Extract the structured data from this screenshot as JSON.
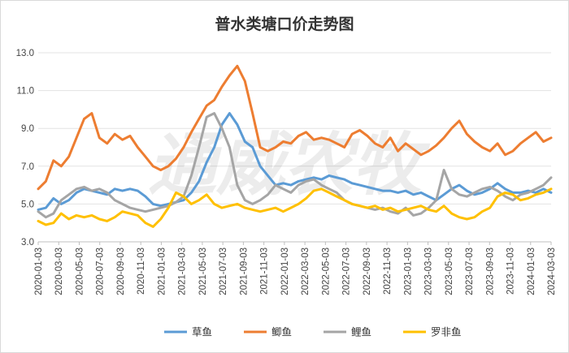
{
  "chart_data": {
    "type": "line",
    "title": "普水类塘口价走势图",
    "watermark": "通威农牧",
    "xlabel": "",
    "ylabel": "",
    "ylim": [
      3.0,
      13.0
    ],
    "yticks": [
      "3.0",
      "5.0",
      "7.0",
      "9.0",
      "11.0",
      "13.0"
    ],
    "x_tick_labels": [
      "2020-01-03",
      "2020-03-03",
      "2020-05-03",
      "2020-07-03",
      "2020-09-03",
      "2020-11-03",
      "2021-01-03",
      "2021-03-03",
      "2021-05-03",
      "2021-07-03",
      "2021-09-03",
      "2021-11-03",
      "2022-01-03",
      "2022-03-03",
      "2022-05-03",
      "2022-07-03",
      "2022-09-03",
      "2022-11-03",
      "2023-01-03",
      "2023-03-03",
      "2023-05-03",
      "2023-07-03",
      "2023-09-03",
      "2023-11-03",
      "2024-01-03",
      "2024-03-03"
    ],
    "grid": true,
    "legend_position": "bottom",
    "series": [
      {
        "name": "草鱼",
        "color": "#5b9bd5",
        "values": [
          4.7,
          4.8,
          5.3,
          5.0,
          5.2,
          5.6,
          5.8,
          5.7,
          5.6,
          5.5,
          5.8,
          5.7,
          5.8,
          5.7,
          5.4,
          5.0,
          4.9,
          5.0,
          5.1,
          5.2,
          5.6,
          6.2,
          7.2,
          8.0,
          9.2,
          9.8,
          9.2,
          8.3,
          8.0,
          7.0,
          6.5,
          6.0,
          6.1,
          6.0,
          6.2,
          6.3,
          6.4,
          6.3,
          6.5,
          6.4,
          6.3,
          6.1,
          6.0,
          5.9,
          5.8,
          5.7,
          5.7,
          5.6,
          5.7,
          5.5,
          5.6,
          5.4,
          5.2,
          5.5,
          5.8,
          6.0,
          5.7,
          5.5,
          5.6,
          5.8,
          6.1,
          5.8,
          5.6,
          5.6,
          5.7,
          5.6,
          5.8,
          5.6
        ]
      },
      {
        "name": "鲫鱼",
        "color": "#ed7d31",
        "values": [
          5.8,
          6.2,
          7.3,
          7.0,
          7.5,
          8.5,
          9.5,
          9.8,
          8.5,
          8.2,
          8.7,
          8.4,
          8.6,
          8.0,
          7.5,
          7.0,
          6.8,
          7.0,
          7.4,
          8.0,
          8.8,
          9.5,
          10.2,
          10.5,
          11.2,
          11.8,
          12.3,
          11.5,
          9.8,
          8.0,
          7.8,
          8.0,
          8.3,
          8.2,
          8.6,
          8.8,
          8.4,
          8.5,
          8.4,
          8.2,
          8.0,
          8.7,
          8.9,
          8.6,
          8.2,
          8.0,
          8.5,
          7.8,
          8.2,
          7.9,
          7.6,
          7.8,
          8.1,
          8.5,
          9.0,
          9.4,
          8.7,
          8.3,
          8.0,
          7.8,
          8.2,
          7.6,
          7.8,
          8.2,
          8.5,
          8.8,
          8.3,
          8.5
        ]
      },
      {
        "name": "鲤鱼",
        "color": "#a5a5a5",
        "values": [
          4.6,
          4.3,
          4.5,
          5.2,
          5.5,
          5.8,
          5.9,
          5.7,
          5.8,
          5.6,
          5.2,
          5.0,
          4.8,
          4.7,
          4.6,
          4.7,
          4.8,
          4.9,
          5.1,
          5.4,
          6.5,
          8.0,
          9.6,
          9.8,
          9.0,
          8.0,
          6.0,
          5.2,
          5.0,
          5.2,
          5.5,
          6.0,
          5.8,
          5.6,
          6.0,
          6.2,
          6.3,
          6.0,
          5.8,
          5.6,
          5.2,
          5.0,
          4.9,
          4.8,
          4.7,
          4.8,
          4.6,
          4.5,
          4.8,
          4.4,
          4.5,
          4.8,
          5.2,
          6.8,
          5.8,
          5.5,
          5.4,
          5.6,
          5.8,
          5.9,
          5.7,
          5.4,
          5.2,
          5.5,
          5.6,
          5.8,
          6.0,
          6.4
        ]
      },
      {
        "name": "罗非鱼",
        "color": "#ffc000",
        "values": [
          4.1,
          3.9,
          4.0,
          4.5,
          4.2,
          4.4,
          4.3,
          4.4,
          4.2,
          4.1,
          4.3,
          4.6,
          4.5,
          4.4,
          4.0,
          3.8,
          4.2,
          4.8,
          5.6,
          5.4,
          5.0,
          5.2,
          5.5,
          5.0,
          4.8,
          4.9,
          5.0,
          4.8,
          4.7,
          4.6,
          4.7,
          4.8,
          4.6,
          4.8,
          5.0,
          5.3,
          5.7,
          5.8,
          5.6,
          5.4,
          5.2,
          5.0,
          4.9,
          4.8,
          4.9,
          4.7,
          4.8,
          4.6,
          4.7,
          4.8,
          4.9,
          4.7,
          4.6,
          4.9,
          4.5,
          4.3,
          4.2,
          4.3,
          4.6,
          4.8,
          5.4,
          5.6,
          5.5,
          5.2,
          5.3,
          5.5,
          5.6,
          5.8
        ]
      }
    ]
  }
}
